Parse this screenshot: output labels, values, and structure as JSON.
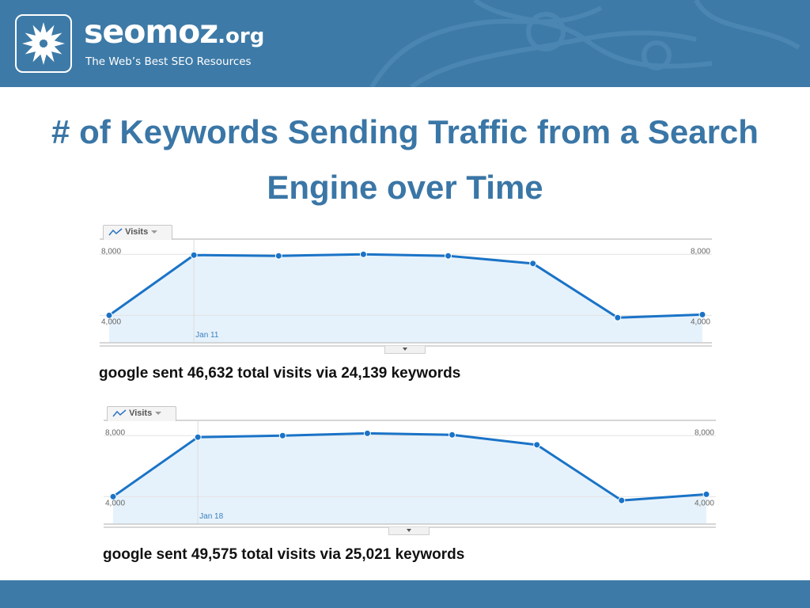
{
  "header": {
    "brand_name": "seomoz",
    "brand_tld": ".org",
    "tagline": "The Web’s Best SEO Resources",
    "logo_icon": "star-flower-icon",
    "banner_color": "#3d7aa7"
  },
  "title": "# of Keywords Sending Traffic from a Search Engine over Time",
  "charts": [
    {
      "tab_label": "Visits",
      "summary": "google sent 46,632 total visits via 24,139 keywords"
    },
    {
      "tab_label": "Visits",
      "summary": "google sent 49,575 total visits via 25,021 keywords"
    }
  ],
  "chart_data": [
    {
      "type": "area",
      "series": [
        {
          "name": "Visits",
          "values": [
            4000,
            7950,
            7900,
            8000,
            7900,
            7400,
            3850,
            4050
          ]
        }
      ],
      "y_tick_labels": [
        "8,000",
        "4,000"
      ],
      "yticks": [
        8000,
        4000
      ],
      "ylim": [
        2200,
        9000
      ],
      "x_annotation": "Jan 11",
      "x_annotation_index": 1,
      "line_color": "#1a73c7",
      "fill_color": "#e6f2fb",
      "grid": true
    },
    {
      "type": "area",
      "series": [
        {
          "name": "Visits",
          "values": [
            4000,
            7900,
            8000,
            8150,
            8050,
            7400,
            3750,
            4150
          ]
        }
      ],
      "y_tick_labels": [
        "8,000",
        "4,000"
      ],
      "yticks": [
        8000,
        4000
      ],
      "ylim": [
        2200,
        9000
      ],
      "x_annotation": "Jan 18",
      "x_annotation_index": 1,
      "line_color": "#1a73c7",
      "fill_color": "#e6f2fb",
      "grid": true
    }
  ]
}
